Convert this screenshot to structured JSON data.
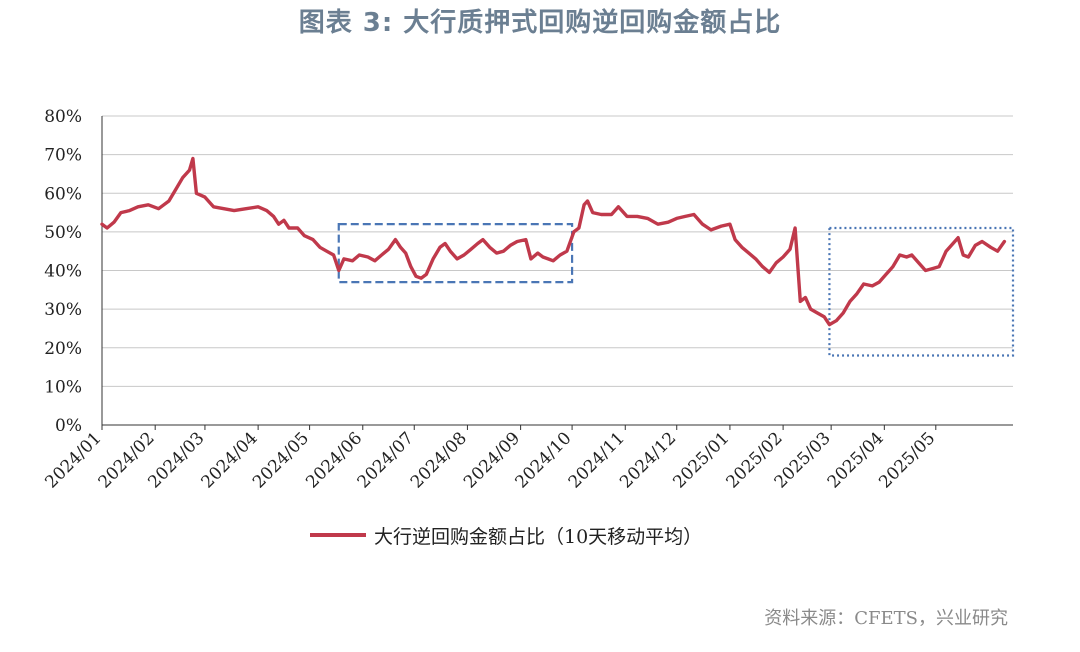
{
  "title": "图表 3: 大行质押式回购逆回购金额占比",
  "source": "资料来源：CFETS，兴业研究",
  "colors": {
    "series": "#c0394b",
    "highlight": "#4a76b5",
    "grid": "#c8c8c8",
    "axis": "#333333"
  },
  "chart_data": {
    "type": "line",
    "ylim": [
      0,
      80
    ],
    "yticks": [
      "0%",
      "10%",
      "20%",
      "30%",
      "40%",
      "50%",
      "60%",
      "70%",
      "80%"
    ],
    "xticks": [
      "2024/01",
      "2024/02",
      "2024/03",
      "2024/04",
      "2024/05",
      "2024/06",
      "2024/07",
      "2024/08",
      "2024/09",
      "2024/10",
      "2024/11",
      "2024/12",
      "2025/01",
      "2025/02",
      "2025/03",
      "2025/04",
      "2025/05"
    ],
    "xlim": [
      "2024-01-01",
      "2025-06-15"
    ],
    "grid": true,
    "legend_position": "bottom",
    "series": [
      {
        "name": "大行逆回购金额占比（10天移动平均）",
        "points": [
          [
            "2024-01-01",
            52
          ],
          [
            "2024-01-04",
            51
          ],
          [
            "2024-01-08",
            52.5
          ],
          [
            "2024-01-12",
            55
          ],
          [
            "2024-01-17",
            55.5
          ],
          [
            "2024-01-22",
            56.5
          ],
          [
            "2024-01-28",
            57
          ],
          [
            "2024-02-03",
            56
          ],
          [
            "2024-02-06",
            57
          ],
          [
            "2024-02-09",
            58
          ],
          [
            "2024-02-13",
            61
          ],
          [
            "2024-02-17",
            64
          ],
          [
            "2024-02-21",
            66
          ],
          [
            "2024-02-23",
            69
          ],
          [
            "2024-02-25",
            60
          ],
          [
            "2024-03-01",
            59
          ],
          [
            "2024-03-06",
            56.5
          ],
          [
            "2024-03-12",
            56
          ],
          [
            "2024-03-18",
            55.5
          ],
          [
            "2024-03-25",
            56
          ],
          [
            "2024-04-01",
            56.5
          ],
          [
            "2024-04-06",
            55.5
          ],
          [
            "2024-04-10",
            54
          ],
          [
            "2024-04-13",
            52
          ],
          [
            "2024-04-16",
            53
          ],
          [
            "2024-04-19",
            51
          ],
          [
            "2024-04-24",
            51
          ],
          [
            "2024-04-28",
            49
          ],
          [
            "2024-05-03",
            48
          ],
          [
            "2024-05-07",
            46
          ],
          [
            "2024-05-11",
            45
          ],
          [
            "2024-05-15",
            44
          ],
          [
            "2024-05-18",
            40
          ],
          [
            "2024-05-21",
            43
          ],
          [
            "2024-05-26",
            42.5
          ],
          [
            "2024-05-30",
            44
          ],
          [
            "2024-06-04",
            43.5
          ],
          [
            "2024-06-08",
            42.5
          ],
          [
            "2024-06-12",
            44
          ],
          [
            "2024-06-16",
            45.5
          ],
          [
            "2024-06-20",
            48
          ],
          [
            "2024-06-23",
            46
          ],
          [
            "2024-06-26",
            44.5
          ],
          [
            "2024-06-29",
            41
          ],
          [
            "2024-07-02",
            38.5
          ],
          [
            "2024-07-05",
            38
          ],
          [
            "2024-07-08",
            39
          ],
          [
            "2024-07-12",
            43
          ],
          [
            "2024-07-16",
            46
          ],
          [
            "2024-07-19",
            47
          ],
          [
            "2024-07-22",
            45
          ],
          [
            "2024-07-26",
            43
          ],
          [
            "2024-07-30",
            44
          ],
          [
            "2024-08-03",
            45.5
          ],
          [
            "2024-08-07",
            47
          ],
          [
            "2024-08-10",
            48
          ],
          [
            "2024-08-14",
            46
          ],
          [
            "2024-08-18",
            44.5
          ],
          [
            "2024-08-22",
            45
          ],
          [
            "2024-08-26",
            46.5
          ],
          [
            "2024-08-30",
            47.5
          ],
          [
            "2024-09-04",
            48
          ],
          [
            "2024-09-07",
            43
          ],
          [
            "2024-09-11",
            44.5
          ],
          [
            "2024-09-14",
            43.5
          ],
          [
            "2024-09-17",
            43
          ],
          [
            "2024-09-20",
            42.5
          ],
          [
            "2024-09-24",
            44
          ],
          [
            "2024-09-28",
            45
          ],
          [
            "2024-10-02",
            50
          ],
          [
            "2024-10-05",
            51
          ],
          [
            "2024-10-08",
            57
          ],
          [
            "2024-10-10",
            58
          ],
          [
            "2024-10-13",
            55
          ],
          [
            "2024-10-18",
            54.5
          ],
          [
            "2024-10-24",
            54.5
          ],
          [
            "2024-10-28",
            56.5
          ],
          [
            "2024-11-02",
            54
          ],
          [
            "2024-11-08",
            54
          ],
          [
            "2024-11-14",
            53.5
          ],
          [
            "2024-11-20",
            52
          ],
          [
            "2024-11-26",
            52.5
          ],
          [
            "2024-12-01",
            53.5
          ],
          [
            "2024-12-06",
            54
          ],
          [
            "2024-12-11",
            54.5
          ],
          [
            "2024-12-16",
            52
          ],
          [
            "2024-12-21",
            50.5
          ],
          [
            "2024-12-27",
            51.5
          ],
          [
            "2025-01-01",
            52
          ],
          [
            "2025-01-04",
            48
          ],
          [
            "2025-01-08",
            46
          ],
          [
            "2025-01-12",
            44.5
          ],
          [
            "2025-01-16",
            43
          ],
          [
            "2025-01-20",
            41
          ],
          [
            "2025-01-24",
            39.5
          ],
          [
            "2025-01-28",
            42
          ],
          [
            "2025-02-01",
            43.5
          ],
          [
            "2025-02-05",
            45.5
          ],
          [
            "2025-02-08",
            51
          ],
          [
            "2025-02-11",
            32
          ],
          [
            "2025-02-14",
            33
          ],
          [
            "2025-02-17",
            30
          ],
          [
            "2025-02-21",
            29
          ],
          [
            "2025-02-25",
            28
          ],
          [
            "2025-02-28",
            26
          ],
          [
            "2025-03-04",
            27
          ],
          [
            "2025-03-08",
            29
          ],
          [
            "2025-03-12",
            32
          ],
          [
            "2025-03-16",
            34
          ],
          [
            "2025-03-20",
            36.5
          ],
          [
            "2025-03-25",
            36
          ],
          [
            "2025-03-29",
            37
          ],
          [
            "2025-04-02",
            39
          ],
          [
            "2025-04-06",
            41
          ],
          [
            "2025-04-10",
            44
          ],
          [
            "2025-04-14",
            43.5
          ],
          [
            "2025-04-17",
            44
          ],
          [
            "2025-04-21",
            42
          ],
          [
            "2025-04-25",
            40
          ],
          [
            "2025-04-29",
            40.5
          ],
          [
            "2025-05-03",
            41
          ],
          [
            "2025-05-07",
            45
          ],
          [
            "2025-05-11",
            47
          ],
          [
            "2025-05-14",
            48.5
          ],
          [
            "2025-05-17",
            44
          ],
          [
            "2025-05-20",
            43.5
          ],
          [
            "2025-05-24",
            46.5
          ],
          [
            "2025-05-28",
            47.5
          ],
          [
            "2025-06-02",
            46
          ],
          [
            "2025-06-06",
            45
          ],
          [
            "2025-06-10",
            47.5
          ]
        ]
      }
    ],
    "highlights": [
      {
        "style": "dashed",
        "x": [
          "2024-05-18",
          "2024-10-01"
        ],
        "y": [
          37,
          52
        ]
      },
      {
        "style": "dotted",
        "x": [
          "2025-02-28",
          "2025-06-15"
        ],
        "y": [
          18,
          51
        ]
      }
    ]
  }
}
